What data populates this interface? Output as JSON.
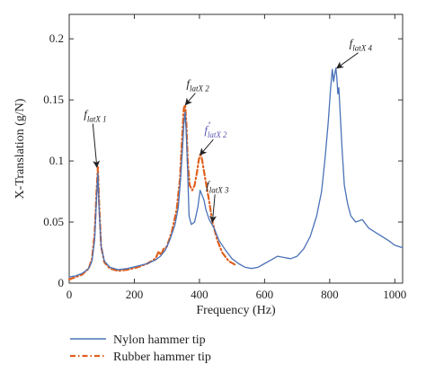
{
  "chart_data": {
    "type": "line",
    "xlabel": "Frequency (Hz)",
    "ylabel": "X-Translation (g/N)",
    "xlim": [
      0,
      1024
    ],
    "ylim": [
      0,
      0.22
    ],
    "xticks": [
      0,
      200,
      400,
      600,
      800,
      1000
    ],
    "yticks": [
      0,
      0.05,
      0.1,
      0.15,
      0.2
    ],
    "xtick_labels": [
      "0",
      "200",
      "400",
      "600",
      "800",
      "1000"
    ],
    "ytick_labels": [
      "0",
      "0.05",
      "0.1",
      "0.15",
      "0.2"
    ],
    "grid": false,
    "legend_position": "bottom-left, below plot",
    "series": [
      {
        "name": "Nylon hammer tip",
        "color": "#4a72b8",
        "style": "solid",
        "x": [
          0,
          20,
          40,
          60,
          70,
          78,
          84,
          88,
          92,
          98,
          108,
          125,
          150,
          180,
          210,
          240,
          265,
          280,
          295,
          310,
          325,
          335,
          342,
          348,
          352,
          356,
          360,
          364,
          368,
          375,
          385,
          395,
          402,
          408,
          414,
          420,
          430,
          445,
          460,
          480,
          500,
          520,
          540,
          560,
          580,
          600,
          620,
          640,
          660,
          680,
          700,
          720,
          740,
          760,
          775,
          785,
          795,
          803,
          808,
          812,
          816,
          819,
          822,
          825,
          828,
          832,
          838,
          845,
          855,
          865,
          880,
          900,
          920,
          950,
          980,
          1000,
          1024
        ],
        "y": [
          0.005,
          0.006,
          0.008,
          0.012,
          0.018,
          0.035,
          0.07,
          0.09,
          0.06,
          0.03,
          0.018,
          0.013,
          0.011,
          0.012,
          0.014,
          0.016,
          0.019,
          0.022,
          0.027,
          0.036,
          0.048,
          0.062,
          0.085,
          0.11,
          0.13,
          0.14,
          0.12,
          0.09,
          0.055,
          0.048,
          0.05,
          0.062,
          0.076,
          0.072,
          0.068,
          0.06,
          0.052,
          0.045,
          0.035,
          0.027,
          0.02,
          0.016,
          0.013,
          0.012,
          0.013,
          0.016,
          0.019,
          0.022,
          0.021,
          0.02,
          0.022,
          0.028,
          0.038,
          0.055,
          0.075,
          0.1,
          0.13,
          0.16,
          0.175,
          0.165,
          0.172,
          0.176,
          0.168,
          0.155,
          0.16,
          0.14,
          0.11,
          0.08,
          0.065,
          0.055,
          0.05,
          0.052,
          0.045,
          0.04,
          0.035,
          0.031,
          0.029
        ]
      },
      {
        "name": "Rubber hammer tip",
        "color": "#e0601e",
        "style": "dash-dot",
        "x": [
          0,
          20,
          40,
          60,
          70,
          78,
          84,
          88,
          92,
          98,
          108,
          125,
          150,
          180,
          210,
          240,
          265,
          275,
          282,
          290,
          300,
          315,
          330,
          340,
          347,
          352,
          356,
          360,
          364,
          370,
          378,
          385,
          392,
          398,
          402,
          406,
          410,
          418,
          428,
          440,
          455,
          470,
          490,
          510
        ],
        "y": [
          0.003,
          0.005,
          0.007,
          0.012,
          0.02,
          0.04,
          0.075,
          0.095,
          0.065,
          0.03,
          0.017,
          0.012,
          0.01,
          0.011,
          0.013,
          0.016,
          0.02,
          0.026,
          0.023,
          0.028,
          0.03,
          0.042,
          0.06,
          0.085,
          0.12,
          0.143,
          0.146,
          0.13,
          0.1,
          0.08,
          0.076,
          0.08,
          0.09,
          0.101,
          0.105,
          0.104,
          0.098,
          0.085,
          0.07,
          0.05,
          0.035,
          0.025,
          0.018,
          0.015
        ]
      }
    ],
    "annotations": [
      {
        "base": "f",
        "sub": "latX 1",
        "prime": false,
        "color": "#222222",
        "x": 85,
        "y": 0.095,
        "label_x": 45,
        "label_y": 0.135
      },
      {
        "base": "f",
        "sub": "latX 2",
        "prime": false,
        "color": "#222222",
        "x": 357,
        "y": 0.146,
        "label_x": 360,
        "label_y": 0.16
      },
      {
        "base": "f",
        "sub": "latX 2",
        "prime": true,
        "color": "#5a55b0",
        "x": 402,
        "y": 0.105,
        "label_x": 415,
        "label_y": 0.122
      },
      {
        "base": "f",
        "sub": "latX 3",
        "prime": false,
        "color": "#222222",
        "x": 440,
        "y": 0.05,
        "label_x": 420,
        "label_y": 0.077
      },
      {
        "base": "f",
        "sub": "latX 4",
        "prime": false,
        "color": "#222222",
        "x": 822,
        "y": 0.176,
        "label_x": 860,
        "label_y": 0.193
      }
    ]
  }
}
